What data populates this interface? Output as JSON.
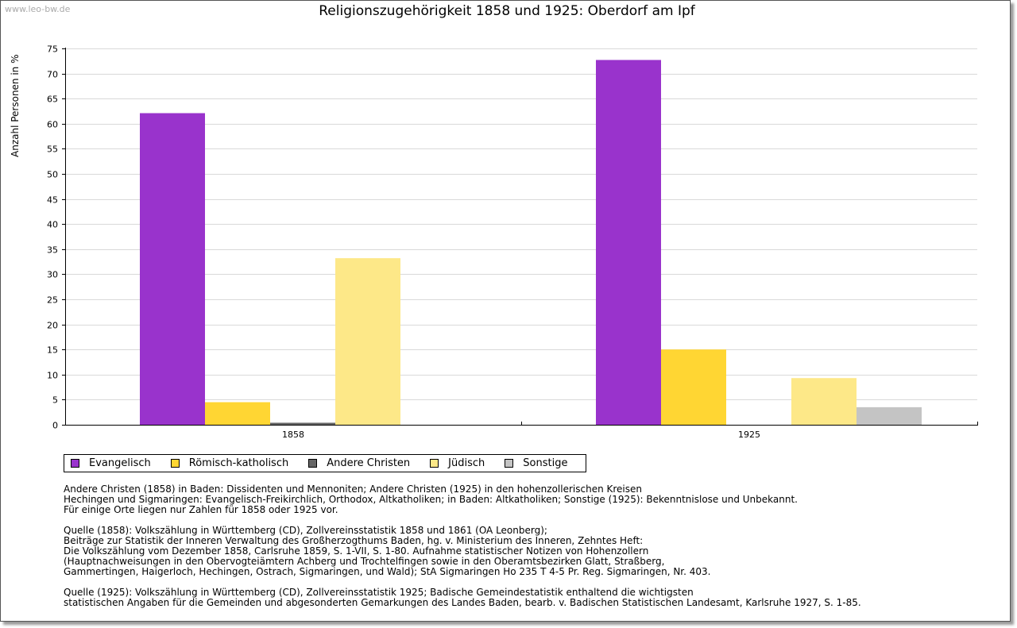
{
  "watermark": "www.leo-bw.de",
  "colors": {
    "axis": "#000000",
    "grid": "#d9d9d9"
  },
  "chart_data": {
    "type": "bar",
    "title": "Religionszugehörigkeit 1858 und 1925: Oberdorf am Ipf",
    "xlabel": "",
    "ylabel": "Anzahl Personen in %",
    "ylim": [
      0,
      75
    ],
    "yticks": [
      0,
      5,
      10,
      15,
      20,
      25,
      30,
      35,
      40,
      45,
      50,
      55,
      60,
      65,
      70,
      75
    ],
    "grid": true,
    "legend_position": "bottom-left",
    "categories": [
      "1858",
      "1925"
    ],
    "series": [
      {
        "name": "Evangelisch",
        "color": "#9933cc",
        "values": [
          62.1,
          72.7
        ]
      },
      {
        "name": "Römisch-katholisch",
        "color": "#ffd633",
        "values": [
          4.5,
          15.0
        ]
      },
      {
        "name": "Andere Christen",
        "color": "#666666",
        "values": [
          0.4,
          0
        ]
      },
      {
        "name": "Jüdisch",
        "color": "#fde888",
        "values": [
          33.2,
          9.3
        ]
      },
      {
        "name": "Sonstige",
        "color": "#c4c4c4",
        "values": [
          0,
          3.5
        ]
      }
    ]
  },
  "notes": [
    "Andere Christen (1858) in Baden: Dissidenten und Mennoniten; Andere Christen (1925) in den hohenzollerischen Kreisen\nHechingen und Sigmaringen: Evangelisch-Freikirchlich, Orthodox, Altkatholiken; in Baden: Altkatholiken; Sonstige (1925): Bekenntnislose und Unbekannt.\nFür einige Orte liegen nur Zahlen für 1858 oder 1925 vor.",
    "Quelle (1858): Volkszählung in Württemberg (CD), Zollvereinsstatistik 1858 und 1861 (OA Leonberg);\nBeiträge zur Statistik der Inneren Verwaltung des Großherzogthums Baden, hg. v. Ministerium des Inneren, Zehntes Heft:\nDie Volkszählung vom Dezember 1858, Carlsruhe 1859, S. 1-VII, S. 1-80. Aufnahme statistischer Notizen von Hohenzollern\n(Hauptnachweisungen in den Obervogteiämtern Achberg und Trochtelfingen sowie in den Oberamtsbezirken Glatt, Straßberg,\nGammertingen, Haigerloch, Hechingen, Ostrach, Sigmaringen, und Wald); StA Sigmaringen Ho 235 T 4-5 Pr. Reg. Sigmaringen, Nr. 403.",
    "Quelle (1925): Volkszählung in Württemberg (CD), Zollvereinsstatistik 1925; Badische Gemeindestatistik enthaltend die wichtigsten\nstatistischen Angaben für die Gemeinden und abgesonderten Gemarkungen des Landes Baden, bearb. v. Badischen Statistischen Landesamt, Karlsruhe 1927, S. 1-85."
  ]
}
